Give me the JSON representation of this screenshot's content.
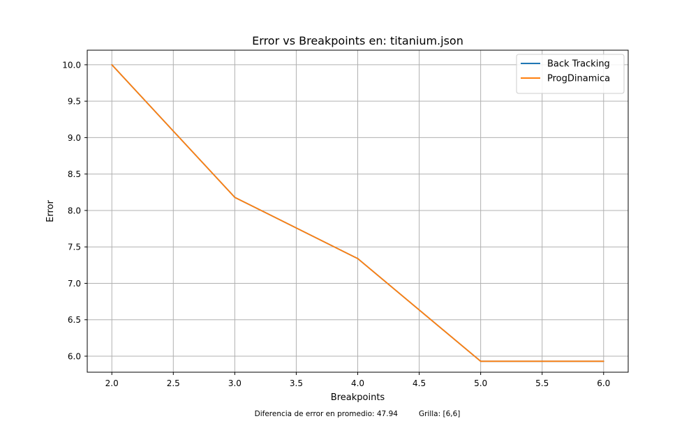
{
  "chart_data": {
    "type": "line",
    "title": "Error vs Breakpoints en: titanium.json",
    "xlabel": "Breakpoints",
    "ylabel": "Error",
    "xlim": [
      1.8,
      6.2
    ],
    "ylim": [
      5.78,
      10.2
    ],
    "x_ticks": [
      "2.0",
      "2.5",
      "3.0",
      "3.5",
      "4.0",
      "4.5",
      "5.0",
      "5.5",
      "6.0"
    ],
    "y_ticks": [
      "6.0",
      "6.5",
      "7.0",
      "7.5",
      "8.0",
      "8.5",
      "9.0",
      "9.5",
      "10.0"
    ],
    "grid": true,
    "legend_position": "top-right",
    "x": [
      2,
      3,
      4,
      5,
      6
    ],
    "series": [
      {
        "name": "Back Tracking",
        "color": "#1f77b4",
        "values": [
          10.0,
          8.18,
          7.34,
          5.93,
          5.93
        ]
      },
      {
        "name": "ProgDinamica",
        "color": "#ff7f0e",
        "values": [
          10.0,
          8.18,
          7.34,
          5.93,
          5.93
        ]
      }
    ]
  },
  "footer": {
    "text": "Diferencia de error en promedio: 47.94         Grilla: [6,6]"
  }
}
